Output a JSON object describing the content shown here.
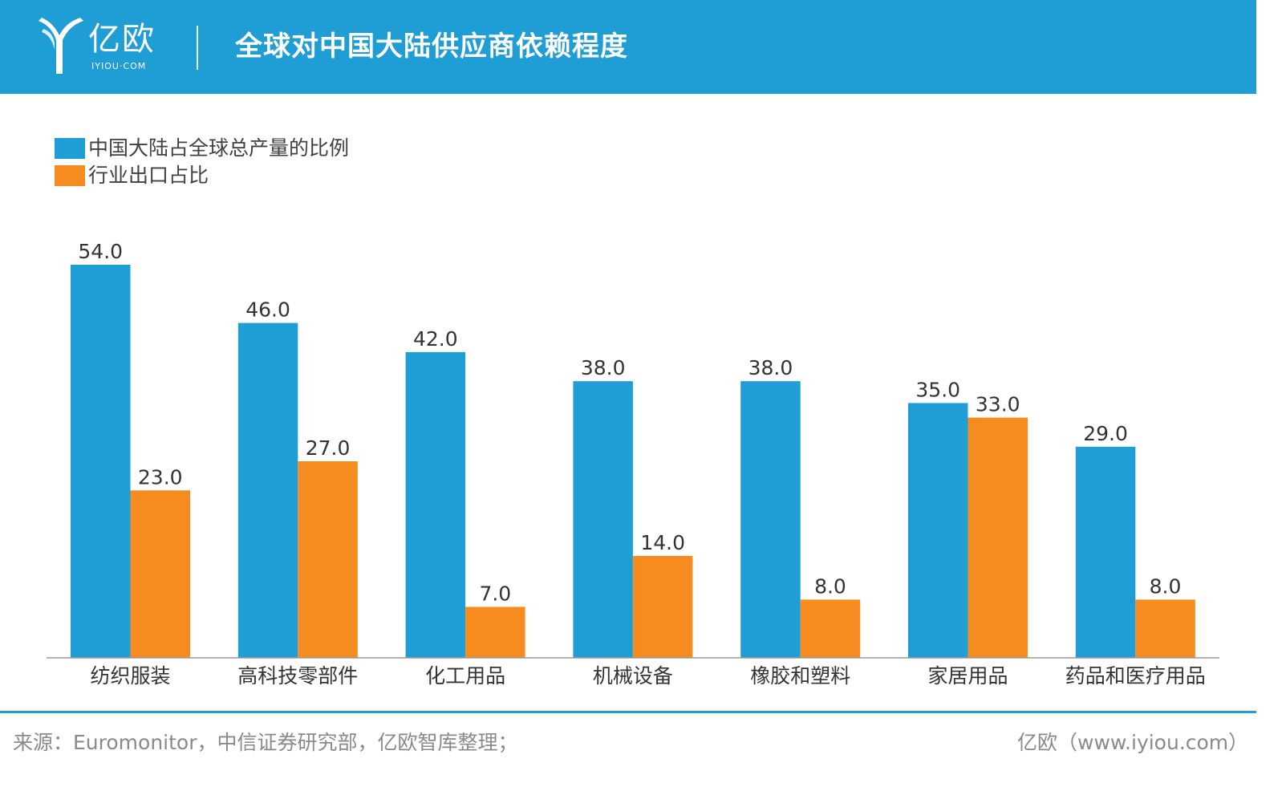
{
  "header": {
    "logo_text": "亿欧",
    "logo_subtext": "IYIOU·COM",
    "title": "全球对中国大陆供应商依赖程度"
  },
  "colors": {
    "header_bg": "#1f9ed5",
    "series_blue": "#1f9ed5",
    "series_orange": "#f68b1f"
  },
  "chart_data": {
    "type": "bar",
    "title": "全球对中国大陆供应商依赖程度",
    "categories": [
      "纺织服装",
      "高科技零部件",
      "化工用品",
      "机械设备",
      "橡胶和塑料",
      "家居用品",
      "药品和医疗用品"
    ],
    "series": [
      {
        "name": "中国大陆占全球总产量的比例",
        "color": "#1f9ed5",
        "values": [
          54.0,
          46.0,
          42.0,
          38.0,
          38.0,
          35.0,
          29.0
        ]
      },
      {
        "name": "行业出口占比",
        "color": "#f68b1f",
        "values": [
          23.0,
          27.0,
          7.0,
          14.0,
          8.0,
          33.0,
          8.0
        ]
      }
    ],
    "ylim": [
      0,
      54
    ],
    "grid": false,
    "legend": "top-left",
    "data_labels": true
  },
  "footer": {
    "source": "来源：Euromonitor，中信证券研究部，亿欧智库整理；",
    "site": "亿欧（www.iyiou.com）"
  }
}
